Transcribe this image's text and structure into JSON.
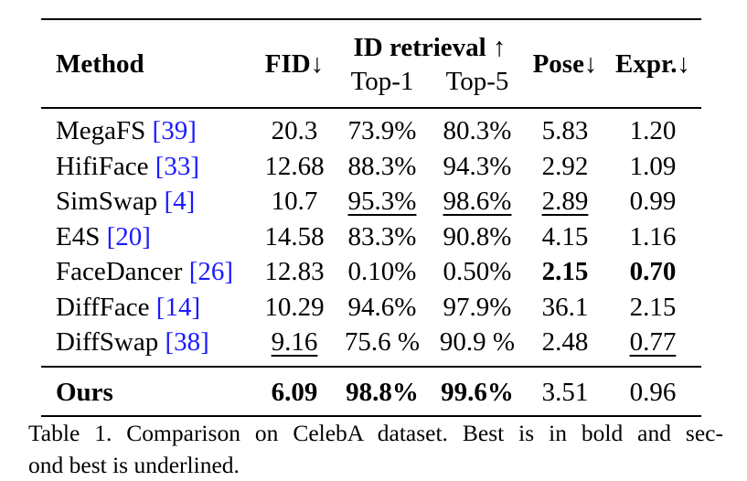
{
  "table": {
    "header": {
      "method": "Method",
      "fid": "FID↓",
      "id_retrieval": "ID retrieval ↑",
      "top1": "Top-1",
      "top5": "Top-5",
      "pose": "Pose↓",
      "expr": "Expr.↓"
    },
    "rows": [
      {
        "name": "MegaFS ",
        "ref": "[39]",
        "fid": "20.3",
        "top1": "73.9%",
        "top5": "80.3%",
        "pose": "5.83",
        "expr": "1.20"
      },
      {
        "name": "HifiFace ",
        "ref": "[33]",
        "fid": "12.68",
        "top1": "88.3%",
        "top5": "94.3%",
        "pose": "2.92",
        "expr": "1.09"
      },
      {
        "name": "SimSwap ",
        "ref": "[4]",
        "fid": "10.7",
        "top1": "95.3%",
        "top5": "98.6%",
        "pose": "2.89",
        "expr": "0.99"
      },
      {
        "name": "E4S ",
        "ref": "[20]",
        "fid": "14.58",
        "top1": "83.3%",
        "top5": "90.8%",
        "pose": "4.15",
        "expr": "1.16"
      },
      {
        "name": "FaceDancer ",
        "ref": "[26]",
        "fid": "12.83",
        "top1": "0.10%",
        "top5": "0.50%",
        "pose": "2.15",
        "expr": "0.70"
      },
      {
        "name": "DiffFace ",
        "ref": "[14]",
        "fid": "10.29",
        "top1": "94.6%",
        "top5": "97.9%",
        "pose": "36.1",
        "expr": "2.15"
      },
      {
        "name": "DiffSwap ",
        "ref": "[38]",
        "fid": "9.16",
        "top1": "75.6 %",
        "top5": "90.9 %",
        "pose": "2.48",
        "expr": "0.77"
      }
    ],
    "ours": {
      "name": "Ours",
      "fid": "6.09",
      "top1": "98.8%",
      "top5": "99.6%",
      "pose": "3.51",
      "expr": "0.96"
    }
  },
  "caption": {
    "line1": "Table 1. Comparison on CelebA dataset. Best is in bold and sec-",
    "line2": "ond best is underlined."
  }
}
